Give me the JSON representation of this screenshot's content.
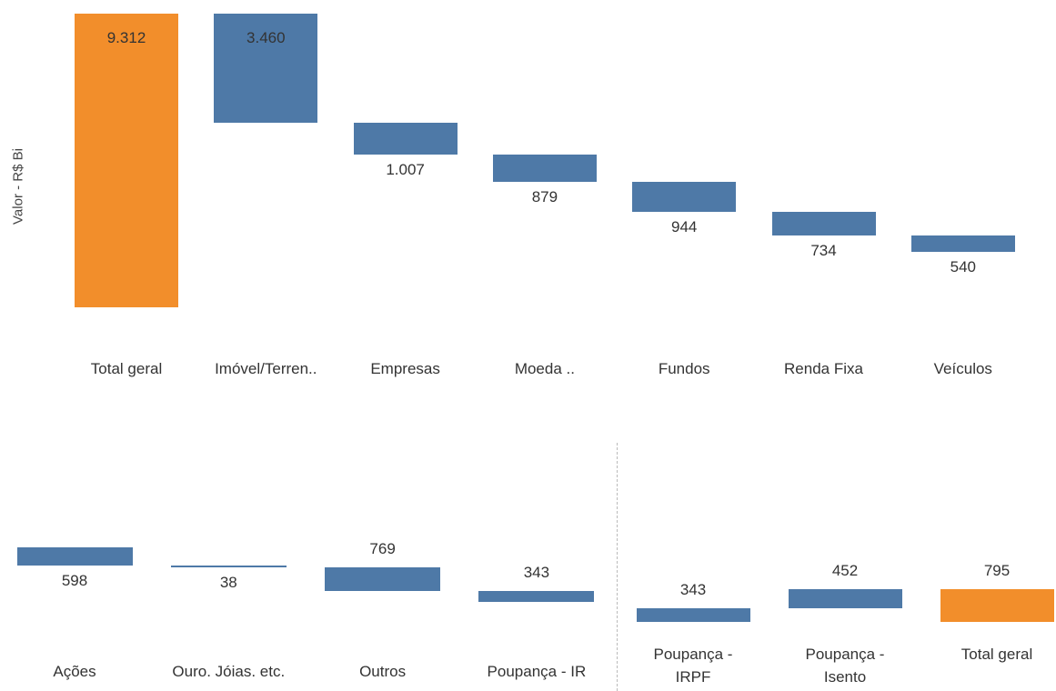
{
  "chart_data": [
    {
      "type": "waterfall",
      "y_label": "Valor - R$ Bi",
      "categories": [
        "Total geral",
        "Imóvel/Terren..",
        "Empresas",
        "Moeda ..",
        "Fundos",
        "Renda Fixa",
        "Veículos"
      ],
      "values": [
        9312,
        3460,
        1007,
        879,
        944,
        734,
        540
      ],
      "value_labels": [
        "9.312",
        "3.460",
        "1.007",
        "879",
        "944",
        "734",
        "540"
      ],
      "measure": [
        "total",
        "relative",
        "relative",
        "relative",
        "relative",
        "relative",
        "relative"
      ],
      "direction": "down",
      "colors": [
        "#f28e2b",
        "#4e79a7",
        "#4e79a7",
        "#4e79a7",
        "#4e79a7",
        "#4e79a7",
        "#4e79a7"
      ],
      "label_position": [
        "inside",
        "inside",
        "below",
        "below",
        "below",
        "below",
        "below"
      ],
      "ylim": [
        0,
        9312
      ]
    },
    {
      "type": "waterfall",
      "categories": [
        "Ações",
        "Ouro. Jóias. etc.",
        "Outros",
        "Poupança - IR"
      ],
      "values": [
        598,
        38,
        769,
        343
      ],
      "measure": [
        "relative",
        "relative",
        "relative",
        "relative"
      ],
      "direction": "down",
      "colors": [
        "#4e79a7",
        "#4e79a7",
        "#4e79a7",
        "#4e79a7"
      ],
      "label_position": [
        "below",
        "below",
        "above",
        "above"
      ],
      "ylim": [
        0,
        2000
      ]
    },
    {
      "type": "waterfall",
      "categories": [
        "Poupança - IRPF",
        "Poupança - Isento",
        "Total geral"
      ],
      "values": [
        343,
        452,
        795
      ],
      "measure": [
        "relative",
        "relative",
        "total"
      ],
      "direction": "up",
      "colors": [
        "#4e79a7",
        "#4e79a7",
        "#f28e2b"
      ],
      "label_position": [
        "above",
        "above",
        "above"
      ],
      "ylim": [
        0,
        1000
      ]
    }
  ]
}
